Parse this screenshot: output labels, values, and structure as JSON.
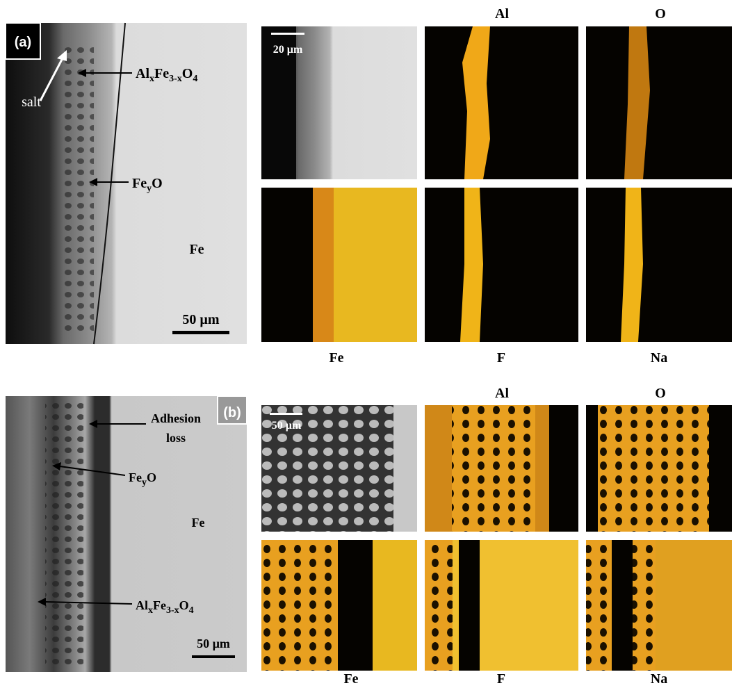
{
  "panel_a": {
    "label": "(a)",
    "salt": "salt",
    "spinel": [
      "Al",
      "x",
      "Fe",
      "3-x",
      "O",
      "4"
    ],
    "wustite": [
      "Fe",
      "y",
      "O"
    ],
    "iron": "Fe",
    "scale_bar": "50 µm",
    "maps": {
      "scale_bar": "20 µm",
      "top_labels": [
        "Al",
        "O"
      ],
      "bottom_labels": [
        "Fe",
        "F",
        "Na"
      ]
    }
  },
  "panel_b": {
    "label": "(b)",
    "adhesion": [
      "Adhesion",
      "loss"
    ],
    "wustite": [
      "Fe",
      "y",
      "O"
    ],
    "iron": "Fe",
    "spinel": [
      "Al",
      "x",
      "Fe",
      "3-x",
      "O",
      "4"
    ],
    "scale_bar": "50 µm",
    "maps": {
      "scale_bar": "50 µm",
      "top_labels": [
        "Al",
        "O"
      ],
      "bottom_labels": [
        "Fe",
        "F",
        "Na"
      ]
    }
  }
}
